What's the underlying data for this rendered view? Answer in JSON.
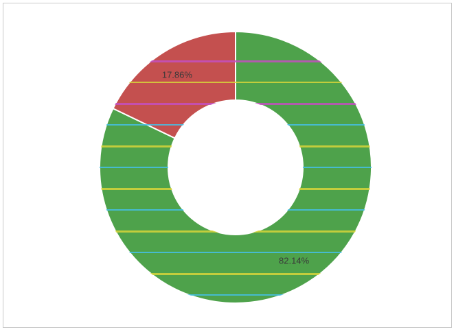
{
  "chart_data": {
    "type": "pie",
    "variant": "donut",
    "slices": [
      {
        "value": 82.14,
        "label": "82.14%",
        "color": "#4ea24b"
      },
      {
        "value": 17.86,
        "label": "17.86%",
        "color": "#c4504f"
      }
    ],
    "stripe_colors": [
      "#d7d53a",
      "#45c0e6",
      "#c44fc0"
    ],
    "slice_border_color": "#ffffff"
  }
}
